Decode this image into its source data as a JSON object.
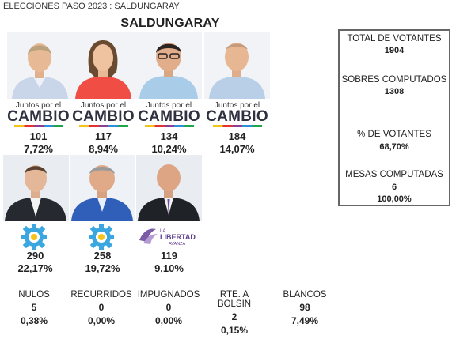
{
  "header": {
    "title": "ELECCIONES PASO 2023 : SALDUNGARAY"
  },
  "town_name": "SALDUNGARAY",
  "candidates": [
    {
      "party_line1": "Juntos por el",
      "party_line2": "CAMBIO",
      "votes": "101",
      "percent": "7,72%"
    },
    {
      "party_line1": "Juntos por el",
      "party_line2": "CAMBIO",
      "votes": "117",
      "percent": "8,94%"
    },
    {
      "party_line1": "Juntos por el",
      "party_line2": "CAMBIO",
      "votes": "134",
      "percent": "10,24%"
    },
    {
      "party_line1": "Juntos por el",
      "party_line2": "CAMBIO",
      "votes": "184",
      "percent": "14,07%"
    },
    {
      "party_logo": "up-gear-logo",
      "votes": "290",
      "percent": "22,17%"
    },
    {
      "party_logo": "up-gear-logo",
      "votes": "258",
      "percent": "19,72%"
    },
    {
      "party_line1": "LA",
      "party_line2": "LIBERTAD",
      "party_line3": "AVANZA",
      "votes": "119",
      "percent": "9,10%"
    }
  ],
  "stats": {
    "total_votantes": {
      "label": "TOTAL DE VOTANTES",
      "value": "1904"
    },
    "sobres": {
      "label": "SOBRES COMPUTADOS",
      "value": "1308"
    },
    "pct_votantes": {
      "label": "% DE VOTANTES",
      "value": "68,70%"
    },
    "mesas": {
      "label": "MESAS COMPUTADAS",
      "value": "6",
      "percent": "100,00%"
    }
  },
  "bottom": [
    {
      "label": "NULOS",
      "value": "5",
      "percent": "0,38%"
    },
    {
      "label": "RECURRIDOS",
      "value": "0",
      "percent": "0,00%"
    },
    {
      "label": "IMPUGNADOS",
      "value": "0",
      "percent": "0,00%"
    },
    {
      "label": "RTE. A BOLSIN",
      "value": "2",
      "percent": "0,15%"
    },
    {
      "label": "BLANCOS",
      "value": "98",
      "percent": "7,49%"
    }
  ],
  "colors": {
    "jxc_text": "#2f3140",
    "up_blue": "#3aa7e0",
    "lla_purple": "#5c3d8f",
    "box_border": "#666666"
  }
}
